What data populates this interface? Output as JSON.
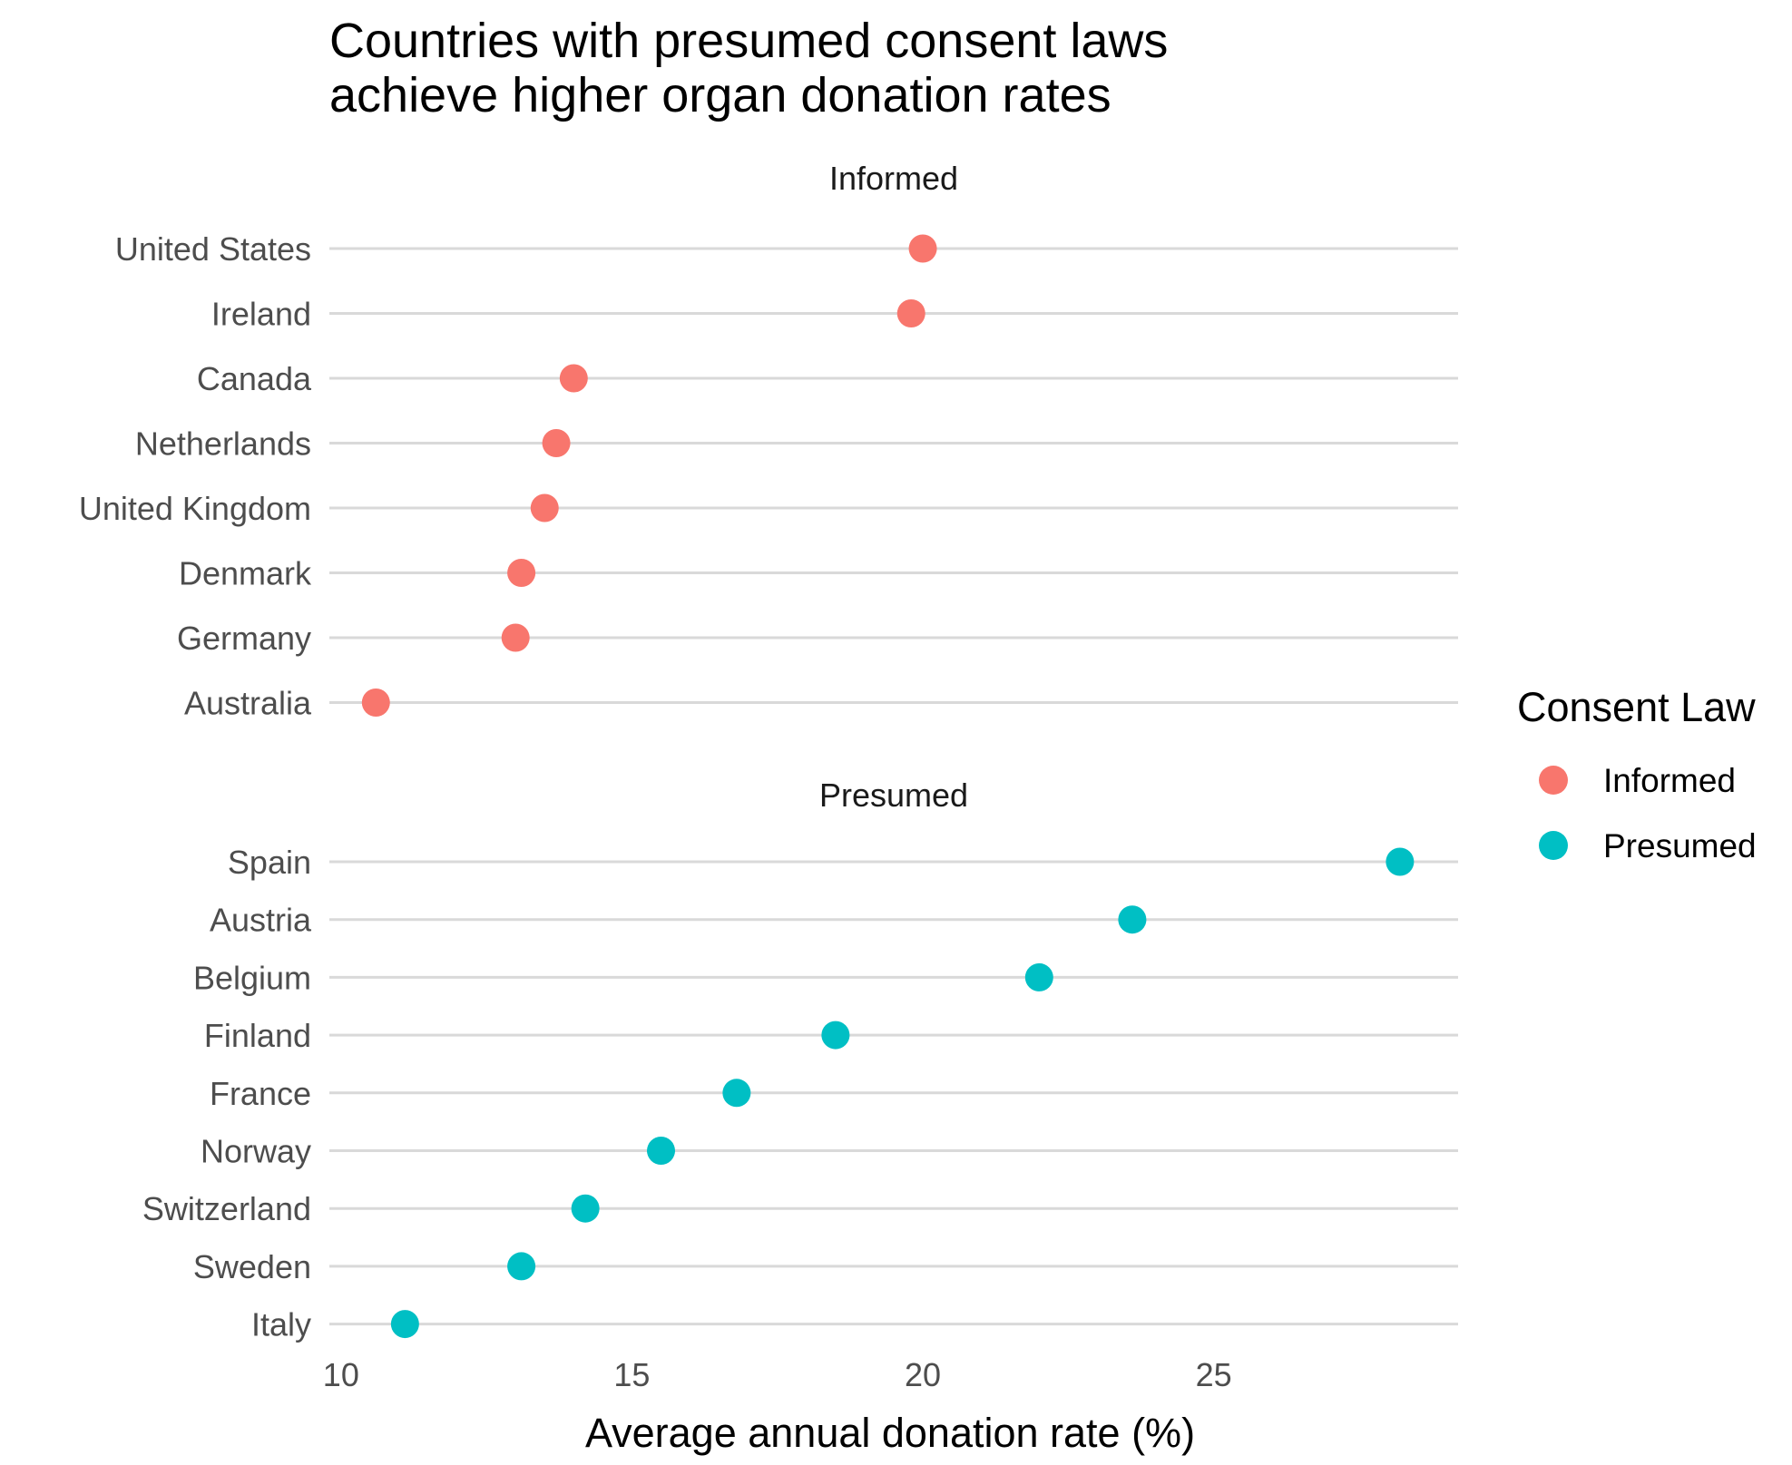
{
  "chart_data": {
    "type": "scatter",
    "title_lines": [
      "Countries with presumed consent laws",
      "achieve higher organ donation rates"
    ],
    "xlabel": "Average annual donation rate (%)",
    "ylabel": "",
    "xlim": [
      9.8,
      29.2
    ],
    "x_ticks": [
      10,
      15,
      20,
      25
    ],
    "x_tick_labels": [
      "10",
      "15",
      "20",
      "25"
    ],
    "grid": true,
    "legend": {
      "title": "Consent Law",
      "placement": "right",
      "entries": [
        {
          "label": "Informed",
          "color": "#F8766D"
        },
        {
          "label": "Presumed",
          "color": "#00BFC4"
        }
      ]
    },
    "facets": [
      {
        "label": "Informed",
        "color": "#F8766D",
        "categories": [
          "United States",
          "Ireland",
          "Canada",
          "Netherlands",
          "United Kingdom",
          "Denmark",
          "Germany",
          "Australia"
        ],
        "values": [
          20.0,
          19.8,
          14.0,
          13.7,
          13.5,
          13.1,
          13.0,
          10.6
        ]
      },
      {
        "label": "Presumed",
        "color": "#00BFC4",
        "categories": [
          "Spain",
          "Austria",
          "Belgium",
          "Finland",
          "France",
          "Norway",
          "Switzerland",
          "Sweden",
          "Italy"
        ],
        "values": [
          28.2,
          23.6,
          22.0,
          18.5,
          16.8,
          15.5,
          14.2,
          13.1,
          11.1
        ]
      }
    ]
  }
}
